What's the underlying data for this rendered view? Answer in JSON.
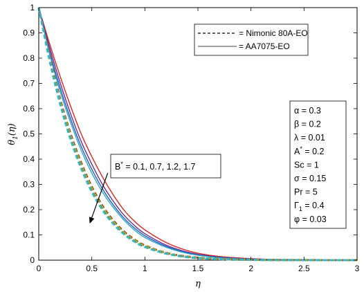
{
  "chart_data": {
    "type": "line",
    "xlabel": "η",
    "ylabel_base": "θ",
    "ylabel_sub": "1",
    "ylabel_arg": "(η)",
    "xlim": [
      0,
      3
    ],
    "ylim": [
      0,
      1
    ],
    "xticks": [
      0,
      0.5,
      1,
      1.5,
      2,
      2.5,
      3
    ],
    "xtick_labels": [
      "0",
      "0.5",
      "1",
      "1.5",
      "2",
      "2.5",
      "3"
    ],
    "yticks": [
      0,
      0.1,
      0.2,
      0.3,
      0.4,
      0.5,
      0.6,
      0.7,
      0.8,
      0.9,
      1
    ],
    "ytick_labels": [
      "0",
      "0.1",
      "0.2",
      "0.3",
      "0.4",
      "0.5",
      "0.6",
      "0.7",
      "0.8",
      "0.9",
      "1"
    ],
    "grid": false,
    "legend_position": "top-right",
    "legend": [
      {
        "label": "= Nimonic 80A-EO",
        "style": "dashed"
      },
      {
        "label": "= AA7075-EO",
        "style": "solid"
      }
    ],
    "parameters": [
      {
        "sym": "α",
        "sup": "",
        "sub": "",
        "val": " = 0.3"
      },
      {
        "sym": "β",
        "sup": "",
        "sub": "",
        "val": " = 0.2"
      },
      {
        "sym": "λ",
        "sup": "",
        "sub": "",
        "val": " = 0.01"
      },
      {
        "sym": "A",
        "sup": "*",
        "sub": "",
        "val": " = 0.2"
      },
      {
        "sym": "Sc",
        "sup": "",
        "sub": "",
        "val": " = 1"
      },
      {
        "sym": "σ",
        "sup": "",
        "sub": "",
        "val": " = 0.15"
      },
      {
        "sym": "Pr",
        "sup": "",
        "sub": "",
        "val": " = 5"
      },
      {
        "sym": "Γ",
        "sup": "",
        "sub": "1",
        "val": " = 0.4"
      },
      {
        "sym": "φ",
        "sup": "",
        "sub": "",
        "val": " = 0.03"
      }
    ],
    "annotation": {
      "base": "B",
      "sup": "*",
      "text": " = 0.1, 0.7, 1.2, 1.7",
      "arrow_from": [
        0.65,
        0.345
      ],
      "arrow_to": [
        0.48,
        0.145
      ]
    },
    "x": [
      0,
      0.1,
      0.2,
      0.3,
      0.4,
      0.5,
      0.6,
      0.7,
      0.8,
      0.9,
      1.0,
      1.2,
      1.4,
      1.6,
      1.8,
      2.0,
      2.2,
      2.4,
      2.6,
      2.8,
      3.0
    ],
    "series": [
      {
        "color": "#e0201b",
        "style": "solid",
        "values": [
          1,
          0.86,
          0.73,
          0.61,
          0.5,
          0.41,
          0.33,
          0.26,
          0.2,
          0.155,
          0.12,
          0.07,
          0.038,
          0.02,
          0.011,
          0.006,
          0.003,
          0.002,
          0.001,
          0.0005,
          0
        ]
      },
      {
        "color": "#6a2c91",
        "style": "solid",
        "values": [
          1,
          0.845,
          0.705,
          0.58,
          0.47,
          0.38,
          0.3,
          0.235,
          0.18,
          0.138,
          0.105,
          0.06,
          0.032,
          0.017,
          0.009,
          0.005,
          0.0025,
          0.0015,
          0.001,
          0.0005,
          0
        ]
      },
      {
        "color": "#1f5fbf",
        "style": "solid",
        "values": [
          1,
          0.83,
          0.685,
          0.56,
          0.45,
          0.36,
          0.283,
          0.22,
          0.168,
          0.128,
          0.097,
          0.055,
          0.029,
          0.015,
          0.008,
          0.004,
          0.002,
          0.001,
          0.0007,
          0.0003,
          0
        ]
      },
      {
        "color": "#2aa6c9",
        "style": "solid",
        "values": [
          1,
          0.82,
          0.67,
          0.545,
          0.435,
          0.345,
          0.27,
          0.21,
          0.16,
          0.12,
          0.09,
          0.051,
          0.027,
          0.014,
          0.007,
          0.0035,
          0.0018,
          0.001,
          0.0005,
          0.0002,
          0
        ]
      },
      {
        "color": "#a0201a",
        "style": "dashed",
        "values": [
          1,
          0.81,
          0.64,
          0.5,
          0.385,
          0.29,
          0.215,
          0.158,
          0.114,
          0.082,
          0.058,
          0.029,
          0.014,
          0.007,
          0.0035,
          0.0017,
          0.0008,
          0.0004,
          0.0002,
          0.0001,
          0
        ]
      },
      {
        "color": "#cfd11c",
        "style": "dashed",
        "values": [
          1,
          0.805,
          0.633,
          0.492,
          0.377,
          0.283,
          0.209,
          0.153,
          0.11,
          0.079,
          0.056,
          0.028,
          0.013,
          0.0065,
          0.003,
          0.0015,
          0.0007,
          0.0003,
          0.0002,
          0.0001,
          0
        ]
      },
      {
        "color": "#7a8f1a",
        "style": "dashed",
        "values": [
          1,
          0.8,
          0.627,
          0.485,
          0.37,
          0.277,
          0.204,
          0.149,
          0.107,
          0.076,
          0.054,
          0.027,
          0.0125,
          0.006,
          0.0028,
          0.0013,
          0.0006,
          0.0003,
          0.0001,
          0.0001,
          0
        ]
      },
      {
        "color": "#33b5cc",
        "style": "dashed",
        "values": [
          1,
          0.795,
          0.621,
          0.478,
          0.363,
          0.271,
          0.199,
          0.145,
          0.104,
          0.074,
          0.052,
          0.026,
          0.012,
          0.0058,
          0.0027,
          0.0012,
          0.0005,
          0.0002,
          0.0001,
          0.0001,
          0
        ]
      }
    ]
  }
}
